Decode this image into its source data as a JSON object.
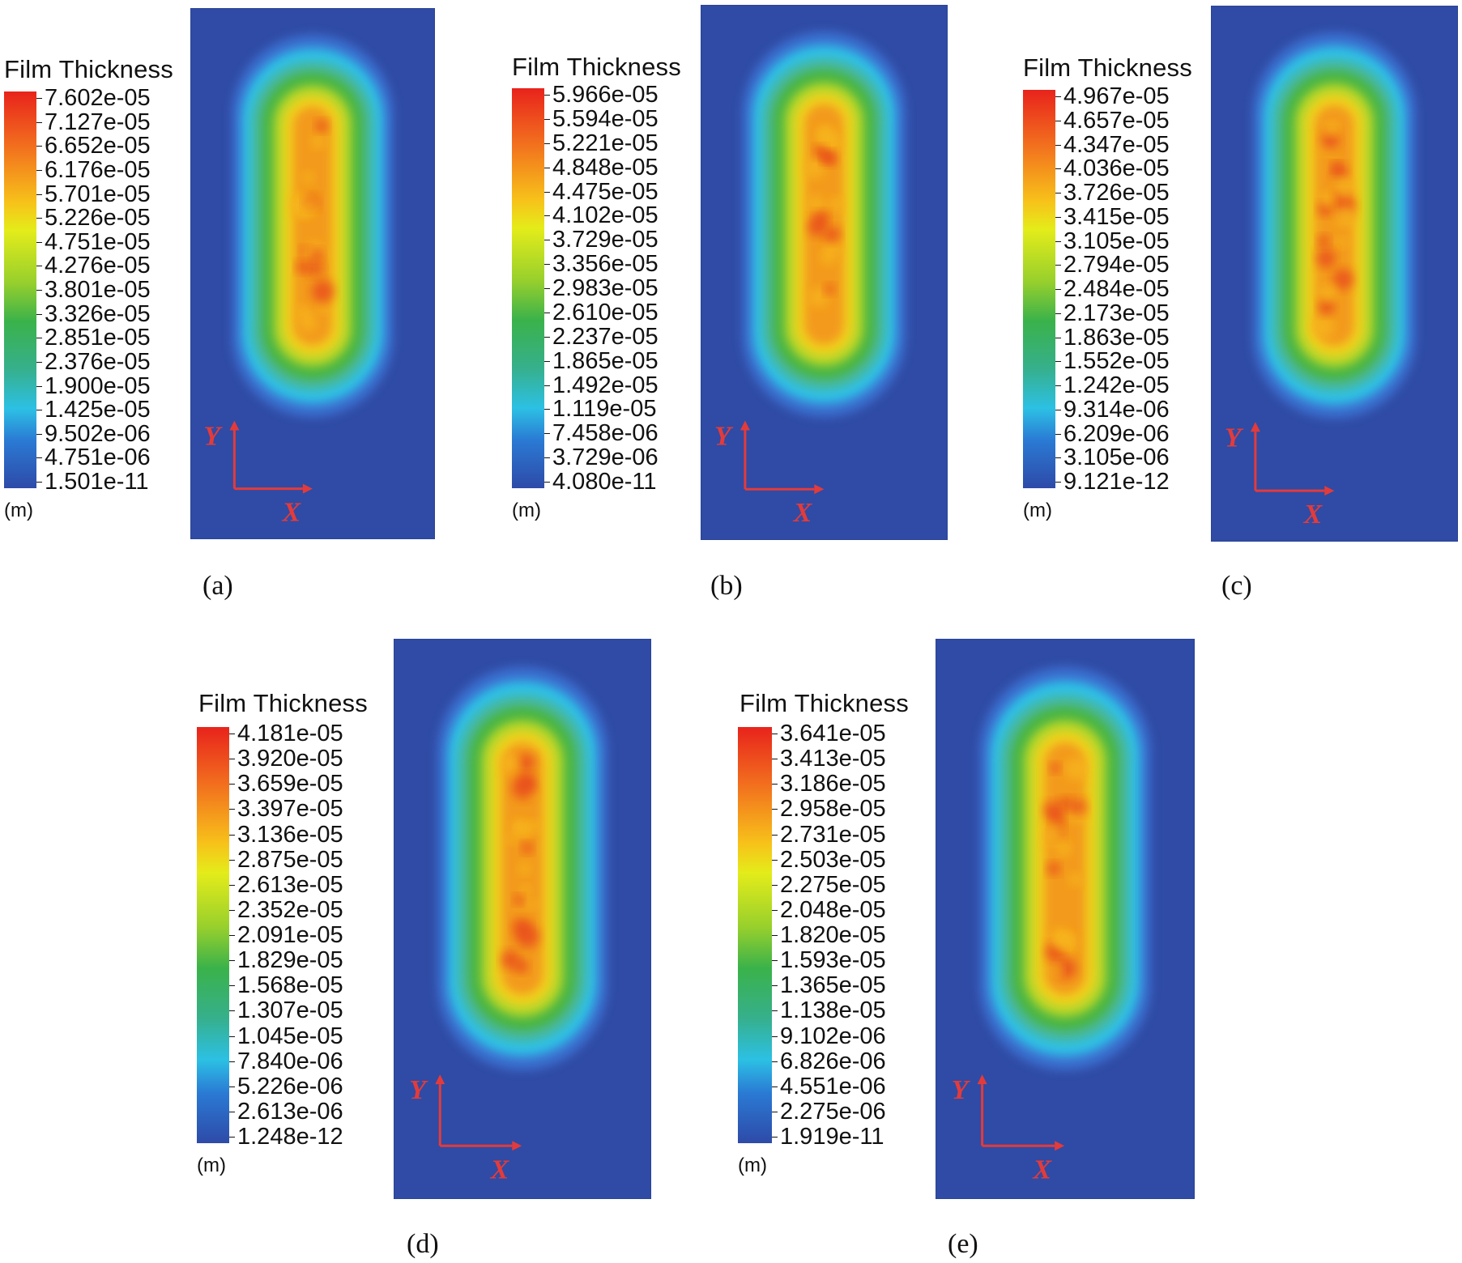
{
  "chart_data": [
    {
      "type": "heatmap",
      "caption": "(a)",
      "legend_title": "Film Thickness",
      "unit": "(m)",
      "axis_labels": {
        "x": "X",
        "y": "Y"
      },
      "colorbar_ticks": [
        "7.602e-05",
        "7.127e-05",
        "6.652e-05",
        "6.176e-05",
        "5.701e-05",
        "5.226e-05",
        "4.751e-05",
        "4.276e-05",
        "3.801e-05",
        "3.326e-05",
        "2.851e-05",
        "2.376e-05",
        "1.900e-05",
        "1.425e-05",
        "9.502e-06",
        "4.751e-06",
        "1.501e-11"
      ],
      "range": [
        1.501e-11,
        7.602e-05
      ]
    },
    {
      "type": "heatmap",
      "caption": "(b)",
      "legend_title": "Film Thickness",
      "unit": "(m)",
      "axis_labels": {
        "x": "X",
        "y": "Y"
      },
      "colorbar_ticks": [
        "5.966e-05",
        "5.594e-05",
        "5.221e-05",
        "4.848e-05",
        "4.475e-05",
        "4.102e-05",
        "3.729e-05",
        "3.356e-05",
        "2.983e-05",
        "2.610e-05",
        "2.237e-05",
        "1.865e-05",
        "1.492e-05",
        "1.119e-05",
        "7.458e-06",
        "3.729e-06",
        "4.080e-11"
      ],
      "range": [
        4.08e-11,
        5.966e-05
      ]
    },
    {
      "type": "heatmap",
      "caption": "(c)",
      "legend_title": "Film Thickness",
      "unit": "(m)",
      "axis_labels": {
        "x": "X",
        "y": "Y"
      },
      "colorbar_ticks": [
        "4.967e-05",
        "4.657e-05",
        "4.347e-05",
        "4.036e-05",
        "3.726e-05",
        "3.415e-05",
        "3.105e-05",
        "2.794e-05",
        "2.484e-05",
        "2.173e-05",
        "1.863e-05",
        "1.552e-05",
        "1.242e-05",
        "9.314e-06",
        "6.209e-06",
        "3.105e-06",
        "9.121e-12"
      ],
      "range": [
        9.121e-12,
        4.967e-05
      ]
    },
    {
      "type": "heatmap",
      "caption": "(d)",
      "legend_title": "Film Thickness",
      "unit": "(m)",
      "axis_labels": {
        "x": "X",
        "y": "Y"
      },
      "colorbar_ticks": [
        "4.181e-05",
        "3.920e-05",
        "3.659e-05",
        "3.397e-05",
        "3.136e-05",
        "2.875e-05",
        "2.613e-05",
        "2.352e-05",
        "2.091e-05",
        "1.829e-05",
        "1.568e-05",
        "1.307e-05",
        "1.045e-05",
        "7.840e-06",
        "5.226e-06",
        "2.613e-06",
        "1.248e-12"
      ],
      "range": [
        1.248e-12,
        4.181e-05
      ]
    },
    {
      "type": "heatmap",
      "caption": "(e)",
      "legend_title": "Film Thickness",
      "unit": "(m)",
      "axis_labels": {
        "x": "X",
        "y": "Y"
      },
      "colorbar_ticks": [
        "3.641e-05",
        "3.413e-05",
        "3.186e-05",
        "2.958e-05",
        "2.731e-05",
        "2.503e-05",
        "2.275e-05",
        "2.048e-05",
        "1.820e-05",
        "1.593e-05",
        "1.365e-05",
        "1.138e-05",
        "9.102e-06",
        "6.826e-06",
        "4.551e-06",
        "2.275e-06",
        "1.919e-11"
      ],
      "range": [
        1.919e-11,
        3.641e-05
      ]
    }
  ]
}
